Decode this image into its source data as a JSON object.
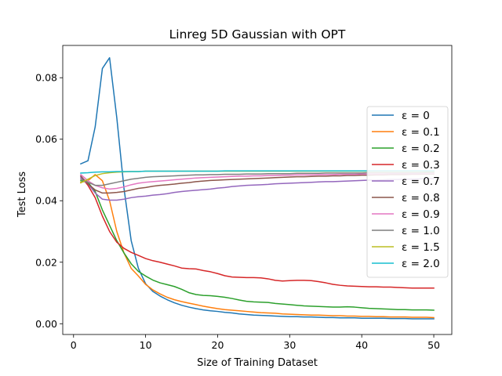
{
  "chart_data": {
    "type": "line",
    "title": "Linreg 5D Gaussian with OPT",
    "xlabel": "Size of Training Dataset",
    "ylabel": "Test Loss",
    "xlim": [
      -1.5,
      52.5
    ],
    "ylim": [
      -0.0035,
      0.0905
    ],
    "xticks": [
      0,
      10,
      20,
      30,
      40,
      50
    ],
    "yticks": [
      0.0,
      0.02,
      0.04,
      0.06,
      0.08
    ],
    "ytick_labels": [
      "0.00",
      "0.02",
      "0.04",
      "0.06",
      "0.08"
    ],
    "grid": false,
    "legend_position": "center-right",
    "series": [
      {
        "name": "ε = 0",
        "color": "#1f77b4",
        "x": [
          1,
          2,
          3,
          4,
          5,
          6,
          7,
          8,
          9,
          10,
          11,
          12,
          13,
          14,
          15,
          16,
          17,
          18,
          19,
          20,
          21,
          22,
          23,
          24,
          25,
          26,
          27,
          28,
          29,
          30,
          31,
          32,
          33,
          34,
          35,
          36,
          37,
          38,
          39,
          40,
          41,
          42,
          43,
          44,
          45,
          46,
          47,
          48,
          49,
          50
        ],
        "y": [
          0.052,
          0.053,
          0.064,
          0.083,
          0.0865,
          0.067,
          0.044,
          0.027,
          0.018,
          0.013,
          0.0105,
          0.009,
          0.0078,
          0.0068,
          0.006,
          0.0054,
          0.0049,
          0.0045,
          0.0042,
          0.004,
          0.0037,
          0.0035,
          0.0032,
          0.003,
          0.0028,
          0.0027,
          0.0026,
          0.0025,
          0.0024,
          0.0023,
          0.0023,
          0.0022,
          0.0022,
          0.0021,
          0.002,
          0.002,
          0.0019,
          0.0019,
          0.0019,
          0.0018,
          0.0018,
          0.0018,
          0.0018,
          0.0017,
          0.0017,
          0.0017,
          0.0016,
          0.0016,
          0.0016,
          0.0016
        ]
      },
      {
        "name": "ε = 0.1",
        "color": "#ff7f0e",
        "x": [
          1,
          2,
          3,
          4,
          5,
          6,
          7,
          8,
          9,
          10,
          11,
          12,
          13,
          14,
          15,
          16,
          17,
          18,
          19,
          20,
          21,
          22,
          23,
          24,
          25,
          26,
          27,
          28,
          29,
          30,
          31,
          32,
          33,
          34,
          35,
          36,
          37,
          38,
          39,
          40,
          41,
          42,
          43,
          44,
          45,
          46,
          47,
          48,
          49,
          50
        ],
        "y": [
          0.046,
          0.0465,
          0.0485,
          0.0465,
          0.04,
          0.03,
          0.023,
          0.018,
          0.0155,
          0.0128,
          0.011,
          0.0097,
          0.0086,
          0.0078,
          0.0072,
          0.0067,
          0.0062,
          0.0057,
          0.0053,
          0.0049,
          0.0046,
          0.0044,
          0.0042,
          0.004,
          0.0038,
          0.0036,
          0.0035,
          0.0034,
          0.0032,
          0.0031,
          0.003,
          0.0029,
          0.0028,
          0.0028,
          0.0027,
          0.0026,
          0.0026,
          0.0025,
          0.0025,
          0.0024,
          0.0024,
          0.0023,
          0.0023,
          0.0022,
          0.0022,
          0.0022,
          0.0021,
          0.0021,
          0.0021,
          0.002
        ]
      },
      {
        "name": "ε = 0.2",
        "color": "#2ca02c",
        "x": [
          1,
          2,
          3,
          4,
          5,
          6,
          7,
          8,
          9,
          10,
          11,
          12,
          13,
          14,
          15,
          16,
          17,
          18,
          19,
          20,
          21,
          22,
          23,
          24,
          25,
          26,
          27,
          28,
          29,
          30,
          31,
          32,
          33,
          34,
          35,
          36,
          37,
          38,
          39,
          40,
          41,
          42,
          43,
          44,
          45,
          46,
          47,
          48,
          49,
          50
        ],
        "y": [
          0.0465,
          0.046,
          0.043,
          0.037,
          0.032,
          0.027,
          0.023,
          0.0195,
          0.017,
          0.0155,
          0.0142,
          0.0133,
          0.0127,
          0.0121,
          0.0112,
          0.0101,
          0.0095,
          0.0092,
          0.0091,
          0.0089,
          0.0086,
          0.0082,
          0.0077,
          0.0073,
          0.0071,
          0.007,
          0.0069,
          0.0066,
          0.0064,
          0.0062,
          0.006,
          0.0058,
          0.0057,
          0.0056,
          0.0055,
          0.0054,
          0.0054,
          0.0055,
          0.0054,
          0.0052,
          0.005,
          0.0049,
          0.0048,
          0.0047,
          0.0046,
          0.0046,
          0.0045,
          0.0045,
          0.0045,
          0.0044
        ]
      },
      {
        "name": "ε = 0.3",
        "color": "#d62728",
        "x": [
          1,
          2,
          3,
          4,
          5,
          6,
          7,
          8,
          9,
          10,
          11,
          12,
          13,
          14,
          15,
          16,
          17,
          18,
          19,
          20,
          21,
          22,
          23,
          24,
          25,
          26,
          27,
          28,
          29,
          30,
          31,
          32,
          33,
          34,
          35,
          36,
          37,
          38,
          39,
          40,
          41,
          42,
          43,
          44,
          45,
          46,
          47,
          48,
          49,
          50
        ],
        "y": [
          0.048,
          0.045,
          0.041,
          0.035,
          0.03,
          0.0265,
          0.0245,
          0.0232,
          0.0222,
          0.0212,
          0.0205,
          0.02,
          0.0194,
          0.0188,
          0.0181,
          0.0179,
          0.0178,
          0.0173,
          0.0169,
          0.0163,
          0.0156,
          0.0152,
          0.0151,
          0.015,
          0.015,
          0.0149,
          0.0146,
          0.0141,
          0.0139,
          0.014,
          0.0141,
          0.0141,
          0.014,
          0.0137,
          0.0133,
          0.0128,
          0.0125,
          0.0123,
          0.0122,
          0.0121,
          0.012,
          0.012,
          0.0119,
          0.0119,
          0.0118,
          0.0117,
          0.0116,
          0.0116,
          0.0116,
          0.0116
        ]
      },
      {
        "name": "ε = 0.7",
        "color": "#9467bd",
        "x": [
          1,
          2,
          3,
          4,
          5,
          6,
          7,
          8,
          9,
          10,
          11,
          12,
          13,
          14,
          15,
          16,
          17,
          18,
          19,
          20,
          21,
          22,
          23,
          24,
          25,
          26,
          27,
          28,
          29,
          30,
          31,
          32,
          33,
          34,
          35,
          36,
          37,
          38,
          39,
          40,
          41,
          42,
          43,
          44,
          45,
          46,
          47,
          48,
          49,
          50
        ],
        "y": [
          0.0475,
          0.0455,
          0.0425,
          0.0405,
          0.0402,
          0.0402,
          0.0405,
          0.041,
          0.0413,
          0.0415,
          0.0418,
          0.042,
          0.0423,
          0.0427,
          0.043,
          0.0432,
          0.0434,
          0.0436,
          0.0438,
          0.0441,
          0.0443,
          0.0446,
          0.0448,
          0.045,
          0.0451,
          0.0452,
          0.0453,
          0.0455,
          0.0456,
          0.0457,
          0.0458,
          0.0459,
          0.046,
          0.0461,
          0.0462,
          0.0462,
          0.0463,
          0.0464,
          0.0465,
          0.0466,
          0.0467,
          0.0467,
          0.0468,
          0.0469,
          0.0469,
          0.047,
          0.047,
          0.0471,
          0.0472,
          0.0472
        ]
      },
      {
        "name": "ε = 0.8",
        "color": "#8c564b",
        "x": [
          1,
          2,
          3,
          4,
          5,
          6,
          7,
          8,
          9,
          10,
          11,
          12,
          13,
          14,
          15,
          16,
          17,
          18,
          19,
          20,
          21,
          22,
          23,
          24,
          25,
          26,
          27,
          28,
          29,
          30,
          31,
          32,
          33,
          34,
          35,
          36,
          37,
          38,
          39,
          40,
          41,
          42,
          43,
          44,
          45,
          46,
          47,
          48,
          49,
          50
        ],
        "y": [
          0.048,
          0.0455,
          0.0435,
          0.0425,
          0.0425,
          0.0427,
          0.043,
          0.0435,
          0.044,
          0.0443,
          0.0447,
          0.045,
          0.0452,
          0.0454,
          0.0457,
          0.0459,
          0.0462,
          0.0464,
          0.0466,
          0.0467,
          0.0468,
          0.0469,
          0.047,
          0.0471,
          0.0472,
          0.0473,
          0.0474,
          0.0475,
          0.0476,
          0.0477,
          0.0478,
          0.0478,
          0.0479,
          0.048,
          0.048,
          0.0481,
          0.0481,
          0.0482,
          0.0482,
          0.0483,
          0.0483,
          0.0484,
          0.0484,
          0.0485,
          0.0485,
          0.0485,
          0.0486,
          0.0486,
          0.0487,
          0.0487
        ]
      },
      {
        "name": "ε = 0.9",
        "color": "#e377c2",
        "x": [
          1,
          2,
          3,
          4,
          5,
          6,
          7,
          8,
          9,
          10,
          11,
          12,
          13,
          14,
          15,
          16,
          17,
          18,
          19,
          20,
          21,
          22,
          23,
          24,
          25,
          26,
          27,
          28,
          29,
          30,
          31,
          32,
          33,
          34,
          35,
          36,
          37,
          38,
          39,
          40,
          41,
          42,
          43,
          44,
          45,
          46,
          47,
          48,
          49,
          50
        ],
        "y": [
          0.0485,
          0.0465,
          0.045,
          0.0442,
          0.0438,
          0.044,
          0.0445,
          0.0452,
          0.0457,
          0.046,
          0.0462,
          0.0464,
          0.0466,
          0.0468,
          0.047,
          0.0472,
          0.0474,
          0.0475,
          0.0476,
          0.0477,
          0.0478,
          0.0479,
          0.048,
          0.048,
          0.0481,
          0.0481,
          0.0482,
          0.0482,
          0.0483,
          0.0483,
          0.0484,
          0.0484,
          0.0484,
          0.0485,
          0.0485,
          0.0485,
          0.0486,
          0.0486,
          0.0486,
          0.0487,
          0.0487,
          0.0487,
          0.0487,
          0.0488,
          0.0488,
          0.0488,
          0.0488,
          0.0488,
          0.0489,
          0.0489
        ]
      },
      {
        "name": "ε = 1.0",
        "color": "#7f7f7f",
        "x": [
          1,
          2,
          3,
          4,
          5,
          6,
          7,
          8,
          9,
          10,
          11,
          12,
          13,
          14,
          15,
          16,
          17,
          18,
          19,
          20,
          21,
          22,
          23,
          24,
          25,
          26,
          27,
          28,
          29,
          30,
          31,
          32,
          33,
          34,
          35,
          36,
          37,
          38,
          39,
          40,
          41,
          42,
          43,
          44,
          45,
          46,
          47,
          48,
          49,
          50
        ],
        "y": [
          0.047,
          0.046,
          0.045,
          0.045,
          0.0455,
          0.046,
          0.0465,
          0.047,
          0.0473,
          0.0476,
          0.0478,
          0.0479,
          0.048,
          0.0481,
          0.0482,
          0.0483,
          0.0484,
          0.0484,
          0.0485,
          0.0485,
          0.0486,
          0.0486,
          0.0486,
          0.0487,
          0.0487,
          0.0487,
          0.0488,
          0.0488,
          0.0488,
          0.0488,
          0.0489,
          0.0489,
          0.0489,
          0.0489,
          0.049,
          0.049,
          0.049,
          0.049,
          0.049,
          0.049,
          0.0491,
          0.0491,
          0.0491,
          0.0491,
          0.0491,
          0.0491,
          0.0491,
          0.0491,
          0.0492,
          0.0492
        ]
      },
      {
        "name": "ε = 1.5",
        "color": "#bcbd22",
        "x": [
          1,
          2,
          3,
          4,
          5,
          6,
          7,
          8,
          9,
          10,
          11,
          12,
          13,
          14,
          15,
          16,
          17,
          18,
          19,
          20,
          21,
          22,
          23,
          24,
          25,
          26,
          27,
          28,
          29,
          30,
          31,
          32,
          33,
          34,
          35,
          36,
          37,
          38,
          39,
          40,
          41,
          42,
          43,
          44,
          45,
          46,
          47,
          48,
          49,
          50
        ],
        "y": [
          0.0458,
          0.047,
          0.0482,
          0.0488,
          0.0491,
          0.0493,
          0.0494,
          0.0495,
          0.0495,
          0.0496,
          0.0496,
          0.0496,
          0.0496,
          0.0496,
          0.0496,
          0.0496,
          0.0496,
          0.0496,
          0.0496,
          0.0496,
          0.0496,
          0.0496,
          0.0496,
          0.0496,
          0.0496,
          0.0496,
          0.0496,
          0.0496,
          0.0496,
          0.0496,
          0.0496,
          0.0496,
          0.0496,
          0.0496,
          0.0496,
          0.0496,
          0.0496,
          0.0496,
          0.0496,
          0.0496,
          0.0496,
          0.0496,
          0.0496,
          0.0496,
          0.0496,
          0.0496,
          0.0496,
          0.0496,
          0.0496,
          0.0496
        ]
      },
      {
        "name": "ε = 2.0",
        "color": "#17becf",
        "x": [
          1,
          2,
          3,
          4,
          5,
          6,
          7,
          8,
          9,
          10,
          11,
          12,
          13,
          14,
          15,
          16,
          17,
          18,
          19,
          20,
          21,
          22,
          23,
          24,
          25,
          26,
          27,
          28,
          29,
          30,
          31,
          32,
          33,
          34,
          35,
          36,
          37,
          38,
          39,
          40,
          41,
          42,
          43,
          44,
          45,
          46,
          47,
          48,
          49,
          50
        ],
        "y": [
          0.049,
          0.0491,
          0.0493,
          0.0494,
          0.0494,
          0.0495,
          0.0495,
          0.0495,
          0.0495,
          0.0496,
          0.0496,
          0.0496,
          0.0496,
          0.0496,
          0.0496,
          0.0496,
          0.0496,
          0.0496,
          0.0496,
          0.0496,
          0.0497,
          0.0497,
          0.0497,
          0.0497,
          0.0497,
          0.0497,
          0.0497,
          0.0497,
          0.0497,
          0.0497,
          0.0497,
          0.0497,
          0.0497,
          0.0497,
          0.0497,
          0.0497,
          0.0497,
          0.0497,
          0.0497,
          0.0497,
          0.0497,
          0.0497,
          0.0497,
          0.0497,
          0.0497,
          0.0497,
          0.0497,
          0.0497,
          0.0497,
          0.0497
        ]
      }
    ]
  }
}
